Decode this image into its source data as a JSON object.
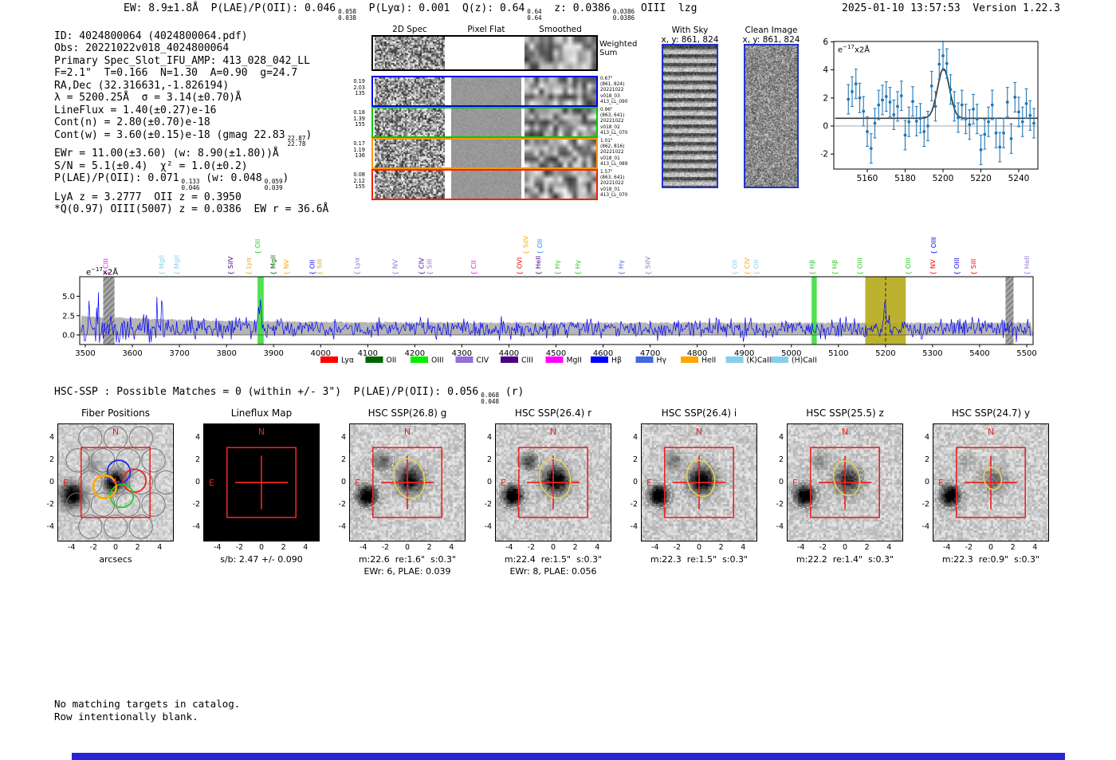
{
  "header": {
    "segments": [
      {
        "t": "EW: 8.9±1.8Å  P(LAE)/P(OII): 0.046"
      },
      {
        "f": [
          "0.058",
          "0.038"
        ]
      },
      {
        "t": "  P(Lyα): 0.001  Q(z): 0.64"
      },
      {
        "f": [
          "0.64",
          "0.64"
        ]
      },
      {
        "t": "  z: 0.0386"
      },
      {
        "f": [
          "0.0386",
          "0.0386"
        ]
      },
      {
        "t": " OIII  lzg"
      }
    ],
    "timestamp": "2025-01-10 13:57:53  Version 1.22.3"
  },
  "info_panel": {
    "lines": [
      [
        {
          "t": "ID: 4024800064 (4024800064.pdf)"
        }
      ],
      [
        {
          "t": "Obs: 20221022v018_4024800064"
        }
      ],
      [
        {
          "t": "Primary Spec_Slot_IFU_AMP: 413_028_042_LL"
        }
      ],
      [
        {
          "t": "F=2.1\"  T=0.166  N=1.30  A=0.90  g=24.7"
        }
      ],
      [
        {
          "t": "RA,Dec (32.316631,-1.826194)"
        }
      ],
      [
        {
          "t": "λ = 5200.25Å  σ = 3.14(±0.70)Å"
        }
      ],
      [
        {
          "t": "LineFlux = 1.40(±0.27)e-16"
        }
      ],
      [
        {
          "t": "Cont(n) = 2.80(±0.70)e-18"
        }
      ],
      [
        {
          "t": "Cont(w) = 3.60(±0.15)e-18 (gmag 22.83"
        },
        {
          "f": [
            "22.87",
            "22.78"
          ]
        },
        {
          "t": ")"
        }
      ],
      [
        {
          "t": "EWr = 11.00(±3.60) (w: 8.90(±1.80))Å"
        }
      ],
      [
        {
          "t": "S/N = 5.1(±0.4)  χ² = 1.0(±0.2)"
        }
      ],
      [
        {
          "t": "P(LAE)/P(OII): 0.071"
        },
        {
          "f": [
            "0.133",
            "0.046"
          ]
        },
        {
          "t": " (w: 0.048"
        },
        {
          "f": [
            "0.059",
            "0.039"
          ]
        },
        {
          "t": ")"
        }
      ],
      [
        {
          "t": "LyA z = 3.2777  OII z = 0.3950"
        }
      ],
      [
        {
          "t": "*Q(0.97) OIII(5007) z = 0.0386  EW r = 36.6Å"
        }
      ]
    ]
  },
  "spec2d": {
    "col_titles": [
      "2D Spec",
      "Pixel Flat",
      "Smoothed"
    ],
    "weighted_sum_label": "Weighted\nSum",
    "rows": [
      {
        "color": "#0000ee",
        "left": [
          "0.19",
          "2.03",
          "135"
        ],
        "right": [
          "0.67\"",
          "(861, 824)",
          "20221022",
          "v018_03",
          "413_LL_090"
        ]
      },
      {
        "color": "#00cc00",
        "left": [
          "0.18",
          "1.39",
          "155"
        ],
        "right": [
          "0.96\"",
          "(863, 641)",
          "20221022",
          "v018_02",
          "413_LL_070"
        ]
      },
      {
        "color": "#ff9500",
        "left": [
          "0.17",
          "1.19",
          "136"
        ],
        "right": [
          "1.01\"",
          "(862, 816)",
          "20221022",
          "v018_01",
          "413_LL_089"
        ]
      },
      {
        "color": "#ee2200",
        "left": [
          "0.08",
          "2.12",
          "155"
        ],
        "right": [
          "1.57\"",
          "(863, 641)",
          "20221022",
          "v018_01",
          "413_LL_070"
        ]
      }
    ]
  },
  "sky_panels": [
    {
      "title": "With Sky",
      "coords": "x, y: 861, 824"
    },
    {
      "title": "Clean Image",
      "coords": "x, y: 861, 824"
    }
  ],
  "hsc_match": {
    "segments": [
      {
        "t": "HSC-SSP : Possible Matches = 0 (within +/- 3\")  P(LAE)/P(OII): 0.056"
      },
      {
        "f": [
          "0.068",
          "0.048"
        ]
      },
      {
        "t": " (r)"
      }
    ]
  },
  "footer_lines": [
    "No matching targets in catalog.",
    "Row intentionally blank."
  ],
  "classification_bar": {
    "color": "#2525d5"
  },
  "chart_data": [
    {
      "id": "line_fit_inset",
      "type": "scatter",
      "annotation": "e-17 x2Å",
      "x_start": 5150,
      "x_step": 2,
      "values": [
        1.9,
        2.45,
        3.0,
        2.0,
        1.05,
        -0.4,
        -1.6,
        0.2,
        1.5,
        1.85,
        2.1,
        1.7,
        0.8,
        1.4,
        2.15,
        -0.65,
        0.3,
        1.75,
        0.35,
        0.55,
        -0.4,
        0.0,
        2.85,
        1.4,
        4.4,
        5.0,
        4.45,
        2.6,
        1.4,
        0.6,
        1.5,
        0.5,
        0.1,
        1.2,
        0.5,
        -1.7,
        -0.6,
        0.3,
        1.5,
        -0.5,
        -1.5,
        -0.5,
        1.7,
        -0.9,
        2.05,
        1.0,
        0.3,
        1.6,
        0.75,
        0.2
      ],
      "yerr": 1.05,
      "fit": {
        "type": "gaussian",
        "center": 5200.25,
        "sigma": 3.14,
        "amplitude": 3.55,
        "baseline": 0.55
      },
      "xticks": [
        5160,
        5180,
        5200,
        5220,
        5240
      ],
      "yticks": [
        -2,
        0,
        2,
        4,
        6
      ],
      "point_color": "#1f77b4",
      "fit_color": "#3a3a3a"
    },
    {
      "id": "full_spectrum",
      "type": "line",
      "annotation": "e-17 x2Å",
      "xlim": [
        3490,
        5510
      ],
      "ylim": [
        -1.2,
        7.4
      ],
      "xticks": [
        3500,
        3600,
        3700,
        3800,
        3900,
        4000,
        4100,
        4200,
        4300,
        4400,
        4500,
        4600,
        4700,
        4800,
        4900,
        5000,
        5100,
        5200,
        5300,
        5400,
        5500
      ],
      "yticks": [
        "0.0",
        "2.5",
        "5.0"
      ],
      "line_color": "#0000ff",
      "error_band_color": "#b5b5b5",
      "detection_line": {
        "wavelength": 5200.25,
        "style": "dashed"
      },
      "bands": [
        {
          "x0": 3538,
          "x1": 3562,
          "type": "hatched",
          "color": "#9a9a9a"
        },
        {
          "x0": 3866,
          "x1": 3879,
          "type": "solid",
          "color": "#3ddd3d"
        },
        {
          "x0": 5043,
          "x1": 5054,
          "type": "solid",
          "color": "#3ddd3d"
        },
        {
          "x0": 5157,
          "x1": 5243,
          "type": "solid",
          "color": "#b5aa1a"
        },
        {
          "x0": 5455,
          "x1": 5472,
          "type": "hatched",
          "color": "#9a9a9a"
        }
      ],
      "line_labels": [
        {
          "text": "CIII",
          "color": "#ff00ff",
          "wave": 3548,
          "row": 0
        },
        {
          "text": "MgII",
          "color": "#87ceeb",
          "wave": 3667,
          "row": 0
        },
        {
          "text": "MgII",
          "color": "#87ceeb",
          "wave": 3699,
          "row": 0
        },
        {
          "text": "SiIV",
          "color": "#4b0082",
          "wave": 3813,
          "row": 0
        },
        {
          "text": "Lyα",
          "color": "#ffa500",
          "wave": 3851,
          "row": 0
        },
        {
          "text": "OII",
          "color": "#22cc22",
          "wave": 3871,
          "row": 1
        },
        {
          "text": "MgII",
          "color": "#006400",
          "wave": 3904,
          "row": 0
        },
        {
          "text": "NV",
          "color": "#ffa500",
          "wave": 3932,
          "row": 0
        },
        {
          "text": "OII",
          "color": "#0000ff",
          "wave": 3987,
          "row": 0
        },
        {
          "text": "SiII",
          "color": "#e8a317",
          "wave": 4002,
          "row": 0
        },
        {
          "text": "Lyα",
          "color": "#9370db",
          "wave": 4082,
          "row": 0
        },
        {
          "text": "NV",
          "color": "#9370db",
          "wave": 4163,
          "row": 0
        },
        {
          "text": "CIV",
          "color": "#4b0082",
          "wave": 4219,
          "row": 0
        },
        {
          "text": "SiII",
          "color": "#9370db",
          "wave": 4236,
          "row": 0
        },
        {
          "text": "CII",
          "color": "#ff00ff",
          "wave": 4330,
          "row": 0
        },
        {
          "text": "OVI",
          "color": "#ff0000",
          "wave": 4427,
          "row": 0
        },
        {
          "text": "SiIV",
          "color": "#ffa500",
          "wave": 4441,
          "row": 1
        },
        {
          "text": "OII",
          "color": "#1e90ff",
          "wave": 4470,
          "row": 1
        },
        {
          "text": "HeII",
          "color": "#4b0082",
          "wave": 4467,
          "row": 0
        },
        {
          "text": "Hγ",
          "color": "#22cc22",
          "wave": 4508,
          "row": 0
        },
        {
          "text": "Hγ",
          "color": "#22cc22",
          "wave": 4551,
          "row": 0
        },
        {
          "text": "Hγ",
          "color": "#4169e1",
          "wave": 4643,
          "row": 0
        },
        {
          "text": "SiIV",
          "color": "#9370db",
          "wave": 4700,
          "row": 0
        },
        {
          "text": "OII",
          "color": "#87ceeb",
          "wave": 4884,
          "row": 0
        },
        {
          "text": "CIV",
          "color": "#ffa500",
          "wave": 4911,
          "row": 0
        },
        {
          "text": "OII",
          "color": "#87ceeb",
          "wave": 4930,
          "row": 0
        },
        {
          "text": "Hβ",
          "color": "#22cc22",
          "wave": 5049,
          "row": 0
        },
        {
          "text": "Hβ",
          "color": "#22cc22",
          "wave": 5097,
          "row": 0
        },
        {
          "text": "OIII",
          "color": "#22cc22",
          "wave": 5150,
          "row": 0
        },
        {
          "text": "OIII",
          "color": "#22cc22",
          "wave": 5253,
          "row": 0
        },
        {
          "text": "OIII",
          "color": "#0000ff",
          "wave": 5307,
          "row": 1
        },
        {
          "text": "NV",
          "color": "#ff0000",
          "wave": 5305,
          "row": 0
        },
        {
          "text": "OIII",
          "color": "#0000ff",
          "wave": 5356,
          "row": 0
        },
        {
          "text": "SiII",
          "color": "#ff0000",
          "wave": 5392,
          "row": 0
        },
        {
          "text": "HeII",
          "color": "#9370db",
          "wave": 5505,
          "row": 0
        }
      ],
      "legend": [
        {
          "label": "Lyα",
          "color": "#ff0000"
        },
        {
          "label": "OII",
          "color": "#006400"
        },
        {
          "label": "OIII",
          "color": "#00ee00"
        },
        {
          "label": "CIV",
          "color": "#9370db"
        },
        {
          "label": "CIII",
          "color": "#4b0082"
        },
        {
          "label": "MgII",
          "color": "#ff00ff"
        },
        {
          "label": "Hβ",
          "color": "#0000ff"
        },
        {
          "label": "Hγ",
          "color": "#4169e1"
        },
        {
          "label": "HeII",
          "color": "#ffa500"
        },
        {
          "label": "(K)CaII",
          "color": "#87ceeb"
        },
        {
          "label": "(H)CaII",
          "color": "#87ceeb"
        }
      ],
      "synthetic_noise": {
        "seed": 77,
        "continuum": 0.8,
        "sigma_blue": 1.3,
        "sigma_red": 0.92,
        "emission_peaks": [
          {
            "wave": 3871,
            "amp": 3.6,
            "sigma": 3.3
          },
          {
            "wave": 5200,
            "amp": 3.1,
            "sigma": 3.1
          }
        ]
      }
    }
  ],
  "cutouts": {
    "axis_ticks": [
      -4,
      -2,
      0,
      2,
      4
    ],
    "compass": {
      "north": "N",
      "east": "E",
      "color": "#ee2222"
    },
    "panels": [
      {
        "key": "fiber",
        "type": "fiber",
        "title": "Fiber Positions",
        "xlabel": "arcsecs"
      },
      {
        "key": "lineflux",
        "type": "viridis",
        "title": "Lineflux Map",
        "caption": "s/b: 2.47 +/- 0.090"
      },
      {
        "key": "g",
        "type": "galaxy",
        "title": "HSC SSP(26.8) g",
        "caption": "m:22.6  re:1.6\"  s:0.3\"",
        "caption2": "EWr: 6, PLAE: 0.039"
      },
      {
        "key": "r",
        "type": "galaxy",
        "title": "HSC SSP(26.4) r",
        "caption": "m:22.4  re:1.5\"  s:0.3\"",
        "caption2": "EWr: 8, PLAE: 0.056"
      },
      {
        "key": "i",
        "type": "galaxy",
        "title": "HSC SSP(26.4) i",
        "caption": "m:22.3  re:1.5\"  s:0.3\""
      },
      {
        "key": "z",
        "type": "galaxy",
        "title": "HSC SSP(25.5) z",
        "caption": "m:22.2  re:1.4\"  s:0.3\""
      },
      {
        "key": "y",
        "type": "galaxy",
        "title": "HSC SSP(24.7) y",
        "caption": "m:22.3  re:0.9\"  s:0.3\""
      }
    ]
  }
}
